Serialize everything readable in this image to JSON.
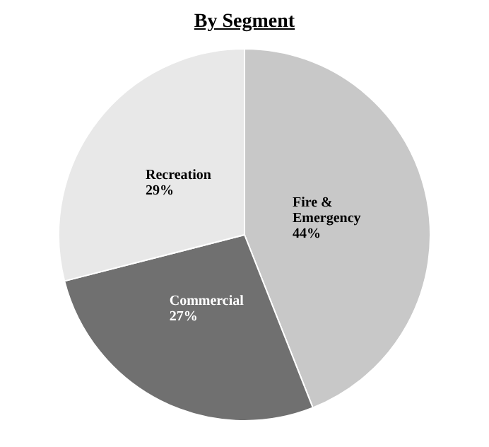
{
  "chart_data": {
    "type": "pie",
    "title": "By Segment",
    "categories": [
      "Fire & Emergency",
      "Commercial",
      "Recreation"
    ],
    "values": [
      44,
      27,
      29
    ],
    "colors": [
      "#c8c8c8",
      "#707070",
      "#e8e8e8"
    ],
    "value_labels": [
      "44%",
      "27%",
      "29%"
    ],
    "legend": false
  }
}
